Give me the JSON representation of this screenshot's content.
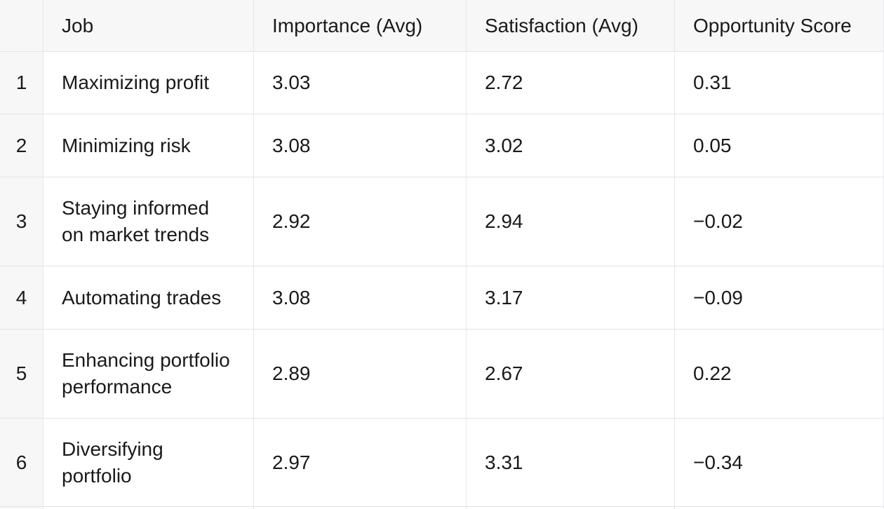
{
  "table": {
    "header": {
      "num": "",
      "job": "Job",
      "importance": "Importance (Avg)",
      "satisfaction": "Satisfaction (Avg)",
      "opportunity": "Opportunity Score"
    },
    "rows": [
      {
        "num": "1",
        "job": "Maximizing profit",
        "importance": "3.03",
        "satisfaction": "2.72",
        "opportunity": "0.31"
      },
      {
        "num": "2",
        "job": "Minimizing risk",
        "importance": "3.08",
        "satisfaction": "3.02",
        "opportunity": "0.05"
      },
      {
        "num": "3",
        "job": "Staying informed on market trends",
        "importance": "2.92",
        "satisfaction": "2.94",
        "opportunity": "−0.02"
      },
      {
        "num": "4",
        "job": "Automating trades",
        "importance": "3.08",
        "satisfaction": "3.17",
        "opportunity": "−0.09"
      },
      {
        "num": "5",
        "job": "Enhancing portfolio performance",
        "importance": "2.89",
        "satisfaction": "2.67",
        "opportunity": "0.22"
      },
      {
        "num": "6",
        "job": "Diversifying portfolio",
        "importance": "2.97",
        "satisfaction": "3.31",
        "opportunity": "−0.34"
      }
    ]
  },
  "colors": {
    "header_bg": "#f7f7f8",
    "row_bg": "#ffffff",
    "border_horizontal": "#e3e4e6",
    "border_vertical": "#e7e8ea",
    "text": "#1a1a1a"
  }
}
